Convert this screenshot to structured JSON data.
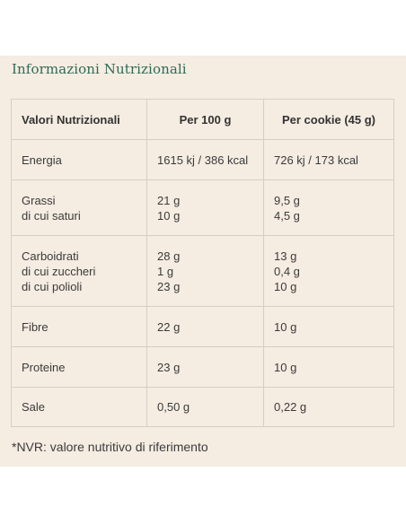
{
  "section_title": "Informazioni Nutrizionali",
  "table": {
    "headers": [
      "Valori Nutrizionali",
      "Per 100 g",
      "Per cookie (45 g)"
    ],
    "rows": [
      {
        "labels": [
          "Energia"
        ],
        "per100": [
          "1615 kj / 386 kcal"
        ],
        "percookie": [
          "726 kj / 173 kcal"
        ]
      },
      {
        "labels": [
          "Grassi",
          "di cui saturi"
        ],
        "per100": [
          "21 g",
          "10 g"
        ],
        "percookie": [
          "9,5 g",
          "4,5 g"
        ]
      },
      {
        "labels": [
          "Carboidrati",
          "di cui zuccheri",
          "di cui polioli"
        ],
        "per100": [
          "28 g",
          "1 g",
          "23 g"
        ],
        "percookie": [
          "13 g",
          "0,4 g",
          "10 g"
        ]
      },
      {
        "labels": [
          "Fibre"
        ],
        "per100": [
          "22 g"
        ],
        "percookie": [
          "10 g"
        ]
      },
      {
        "labels": [
          "Proteine"
        ],
        "per100": [
          "23 g"
        ],
        "percookie": [
          "10 g"
        ]
      },
      {
        "labels": [
          "Sale"
        ],
        "per100": [
          "0,50 g"
        ],
        "percookie": [
          "0,22 g"
        ]
      }
    ]
  },
  "footnote": "*NVR: valore nutritivo di riferimento"
}
